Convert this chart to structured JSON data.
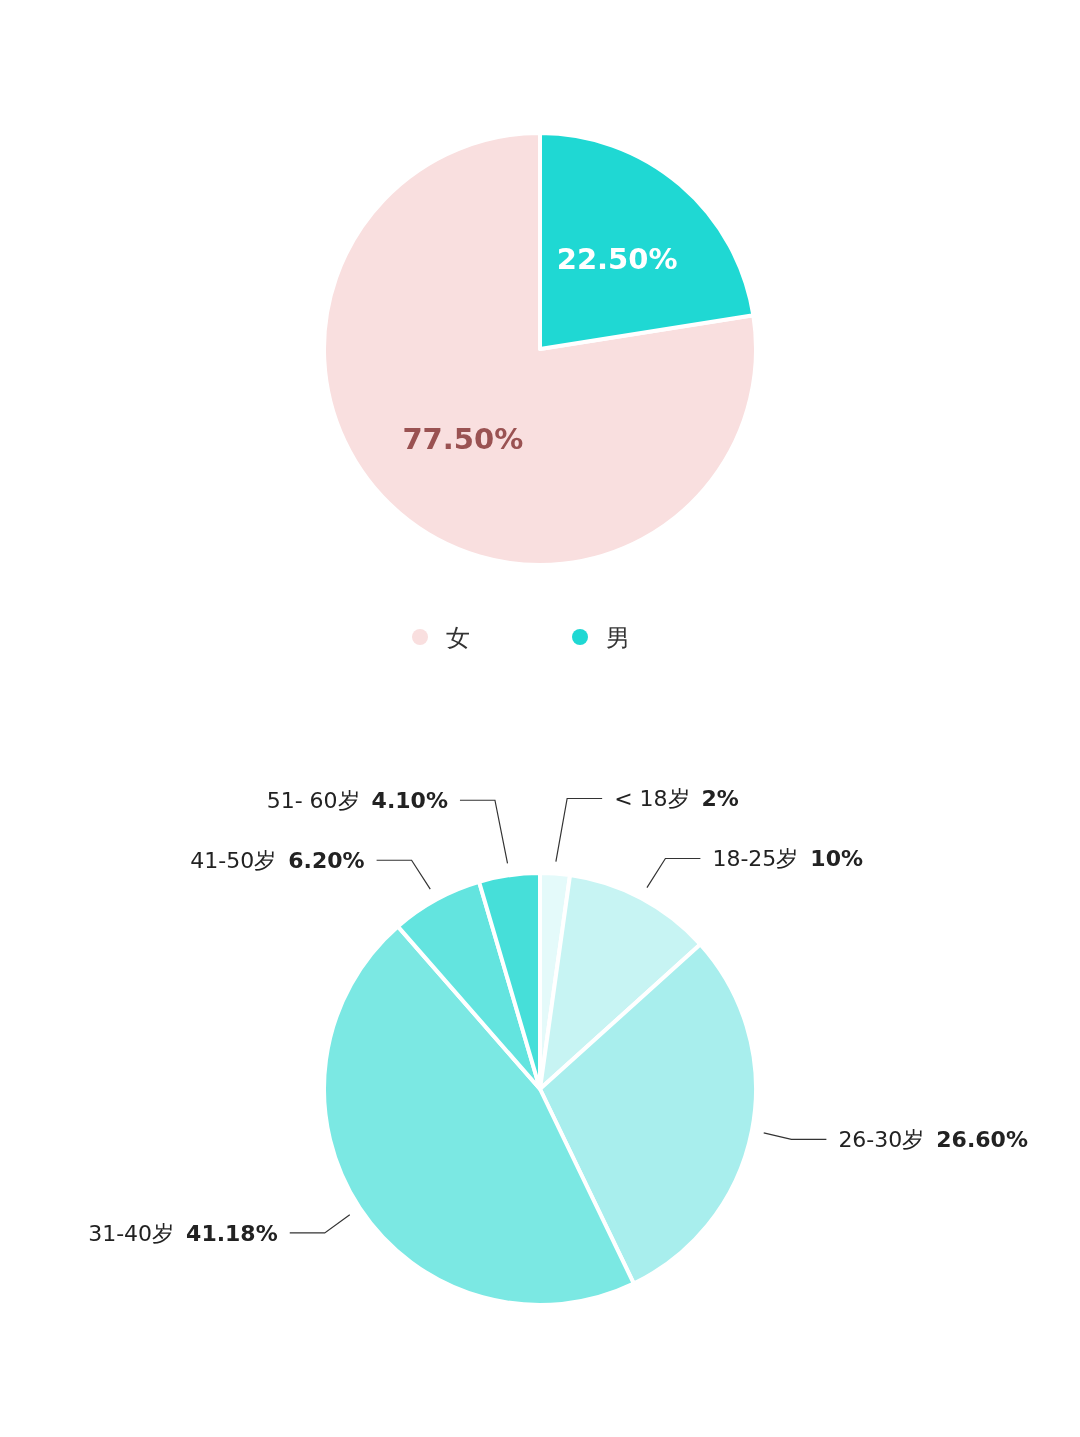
{
  "chart_data": [
    {
      "type": "pie",
      "categories": [
        "女",
        "男"
      ],
      "values": [
        77.5,
        22.5
      ],
      "colors": [
        "#f9dfdf",
        "#1fd8d3"
      ],
      "value_labels": [
        "77.50%",
        "22.50%"
      ],
      "legend": "bottom"
    },
    {
      "type": "pie",
      "categories": [
        "< 18岁",
        "18-25岁",
        "26-30岁",
        "31-40岁",
        "41-50岁",
        "51- 60岁"
      ],
      "values": [
        2,
        10,
        26.6,
        41.18,
        6.2,
        4.1
      ],
      "colors": [
        "#e4fafa",
        "#c7f4f3",
        "#a8eeed",
        "#7be8e3",
        "#63e4df",
        "#46dfd9"
      ],
      "value_labels": [
        "2%",
        "10%",
        "26.60%",
        "41.18%",
        "6.20%",
        "4.10%"
      ]
    }
  ]
}
